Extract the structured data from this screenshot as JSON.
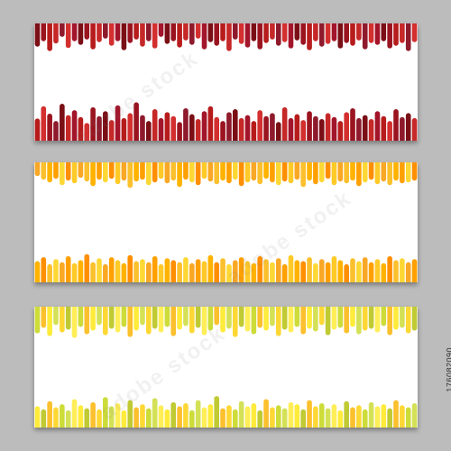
{
  "image_id_text": "176082090",
  "watermark_text": "adobe stock",
  "banners": [
    {
      "id": "red",
      "colors": [
        "#7a0f16",
        "#9a1420",
        "#b71c1c",
        "#c62828",
        "#8e1a2c",
        "#d32f2f",
        "#a3152a"
      ],
      "top_levels": [
        0.52,
        0.4,
        0.62,
        0.45,
        0.3,
        0.55,
        0.4,
        0.48,
        0.36,
        0.58,
        0.42,
        0.34,
        0.5,
        0.4,
        0.6,
        0.44,
        0.36,
        0.52,
        0.4,
        0.56,
        0.3,
        0.46,
        0.4,
        0.54,
        0.38,
        0.48,
        0.34,
        0.58,
        0.42,
        0.5,
        0.4,
        0.62,
        0.36,
        0.46,
        0.54,
        0.4,
        0.58,
        0.44,
        0.36,
        0.5,
        0.42,
        0.56,
        0.38,
        0.48,
        0.6,
        0.4,
        0.52,
        0.46,
        0.4,
        0.56,
        0.44,
        0.5,
        0.38,
        0.58,
        0.44,
        0.48,
        0.4,
        0.56,
        0.5,
        0.44,
        0.62,
        0.42
      ],
      "bottom_levels": [
        0.45,
        0.7,
        0.55,
        0.4,
        0.75,
        0.52,
        0.62,
        0.48,
        0.36,
        0.68,
        0.5,
        0.6,
        0.42,
        0.72,
        0.46,
        0.56,
        0.78,
        0.52,
        0.4,
        0.64,
        0.46,
        0.58,
        0.5,
        0.38,
        0.66,
        0.54,
        0.44,
        0.6,
        0.7,
        0.48,
        0.4,
        0.58,
        0.64,
        0.46,
        0.52,
        0.4,
        0.62,
        0.5,
        0.56,
        0.38,
        0.68,
        0.46,
        0.54,
        0.42,
        0.6,
        0.5,
        0.44,
        0.56,
        0.48,
        0.4,
        0.58,
        0.66,
        0.46,
        0.52,
        0.44,
        0.6,
        0.5,
        0.4,
        0.64,
        0.48,
        0.56,
        0.46
      ]
    },
    {
      "id": "orange",
      "colors": [
        "#f9a825",
        "#fbc02d",
        "#ffb300",
        "#ffa000",
        "#fdd835",
        "#ff8f00",
        "#ffca28"
      ],
      "top_levels": [
        0.3,
        0.38,
        0.44,
        0.36,
        0.5,
        0.4,
        0.46,
        0.34,
        0.42,
        0.52,
        0.38,
        0.44,
        0.36,
        0.48,
        0.4,
        0.56,
        0.42,
        0.38,
        0.5,
        0.44,
        0.36,
        0.46,
        0.4,
        0.54,
        0.38,
        0.44,
        0.5,
        0.36,
        0.42,
        0.48,
        0.4,
        0.46,
        0.38,
        0.52,
        0.44,
        0.4,
        0.48,
        0.36,
        0.44,
        0.5,
        0.42,
        0.46,
        0.38,
        0.54,
        0.4,
        0.48,
        0.44,
        0.36,
        0.5,
        0.42,
        0.46,
        0.4,
        0.52,
        0.44,
        0.38,
        0.48,
        0.42,
        0.5,
        0.4,
        0.46,
        0.44,
        0.4
      ],
      "bottom_levels": [
        0.42,
        0.5,
        0.36,
        0.46,
        0.4,
        0.52,
        0.38,
        0.44,
        0.56,
        0.4,
        0.48,
        0.36,
        0.5,
        0.44,
        0.38,
        0.54,
        0.42,
        0.46,
        0.4,
        0.52,
        0.36,
        0.48,
        0.44,
        0.4,
        0.5,
        0.38,
        0.46,
        0.42,
        0.54,
        0.4,
        0.48,
        0.36,
        0.44,
        0.5,
        0.42,
        0.38,
        0.52,
        0.46,
        0.4,
        0.48,
        0.36,
        0.54,
        0.44,
        0.42,
        0.5,
        0.38,
        0.46,
        0.4,
        0.52,
        0.44,
        0.36,
        0.48,
        0.42,
        0.5,
        0.4,
        0.46,
        0.38,
        0.52,
        0.44,
        0.48,
        0.4,
        0.46
      ]
    },
    {
      "id": "yellow",
      "colors": [
        "#cddc39",
        "#fbc02d",
        "#ffeb3b",
        "#d4e157",
        "#fdd835",
        "#c0ca33",
        "#ffee58"
      ],
      "top_levels": [
        0.58,
        0.46,
        0.64,
        0.4,
        0.56,
        0.5,
        0.68,
        0.44,
        0.6,
        0.52,
        0.4,
        0.62,
        0.48,
        0.56,
        0.44,
        0.66,
        0.52,
        0.4,
        0.6,
        0.48,
        0.56,
        0.44,
        0.64,
        0.5,
        0.42,
        0.58,
        0.46,
        0.62,
        0.52,
        0.4,
        0.56,
        0.48,
        0.66,
        0.44,
        0.54,
        0.6,
        0.46,
        0.52,
        0.42,
        0.64,
        0.5,
        0.56,
        0.44,
        0.6,
        0.48,
        0.54,
        0.4,
        0.62,
        0.5,
        0.46,
        0.58,
        0.44,
        0.6,
        0.52,
        0.48,
        0.56,
        0.42,
        0.62,
        0.5,
        0.46,
        0.58,
        0.52
      ],
      "bottom_levels": [
        0.42,
        0.36,
        0.52,
        0.4,
        0.46,
        0.34,
        0.56,
        0.44,
        0.38,
        0.5,
        0.36,
        0.6,
        0.42,
        0.48,
        0.34,
        0.54,
        0.4,
        0.46,
        0.38,
        0.58,
        0.44,
        0.36,
        0.5,
        0.42,
        0.48,
        0.34,
        0.54,
        0.4,
        0.46,
        0.62,
        0.38,
        0.44,
        0.36,
        0.52,
        0.42,
        0.48,
        0.34,
        0.56,
        0.4,
        0.44,
        0.38,
        0.5,
        0.46,
        0.36,
        0.54,
        0.42,
        0.48,
        0.38,
        0.46,
        0.34,
        0.52,
        0.4,
        0.44,
        0.36,
        0.5,
        0.42,
        0.46,
        0.38,
        0.54,
        0.44,
        0.4,
        0.48
      ]
    }
  ]
}
